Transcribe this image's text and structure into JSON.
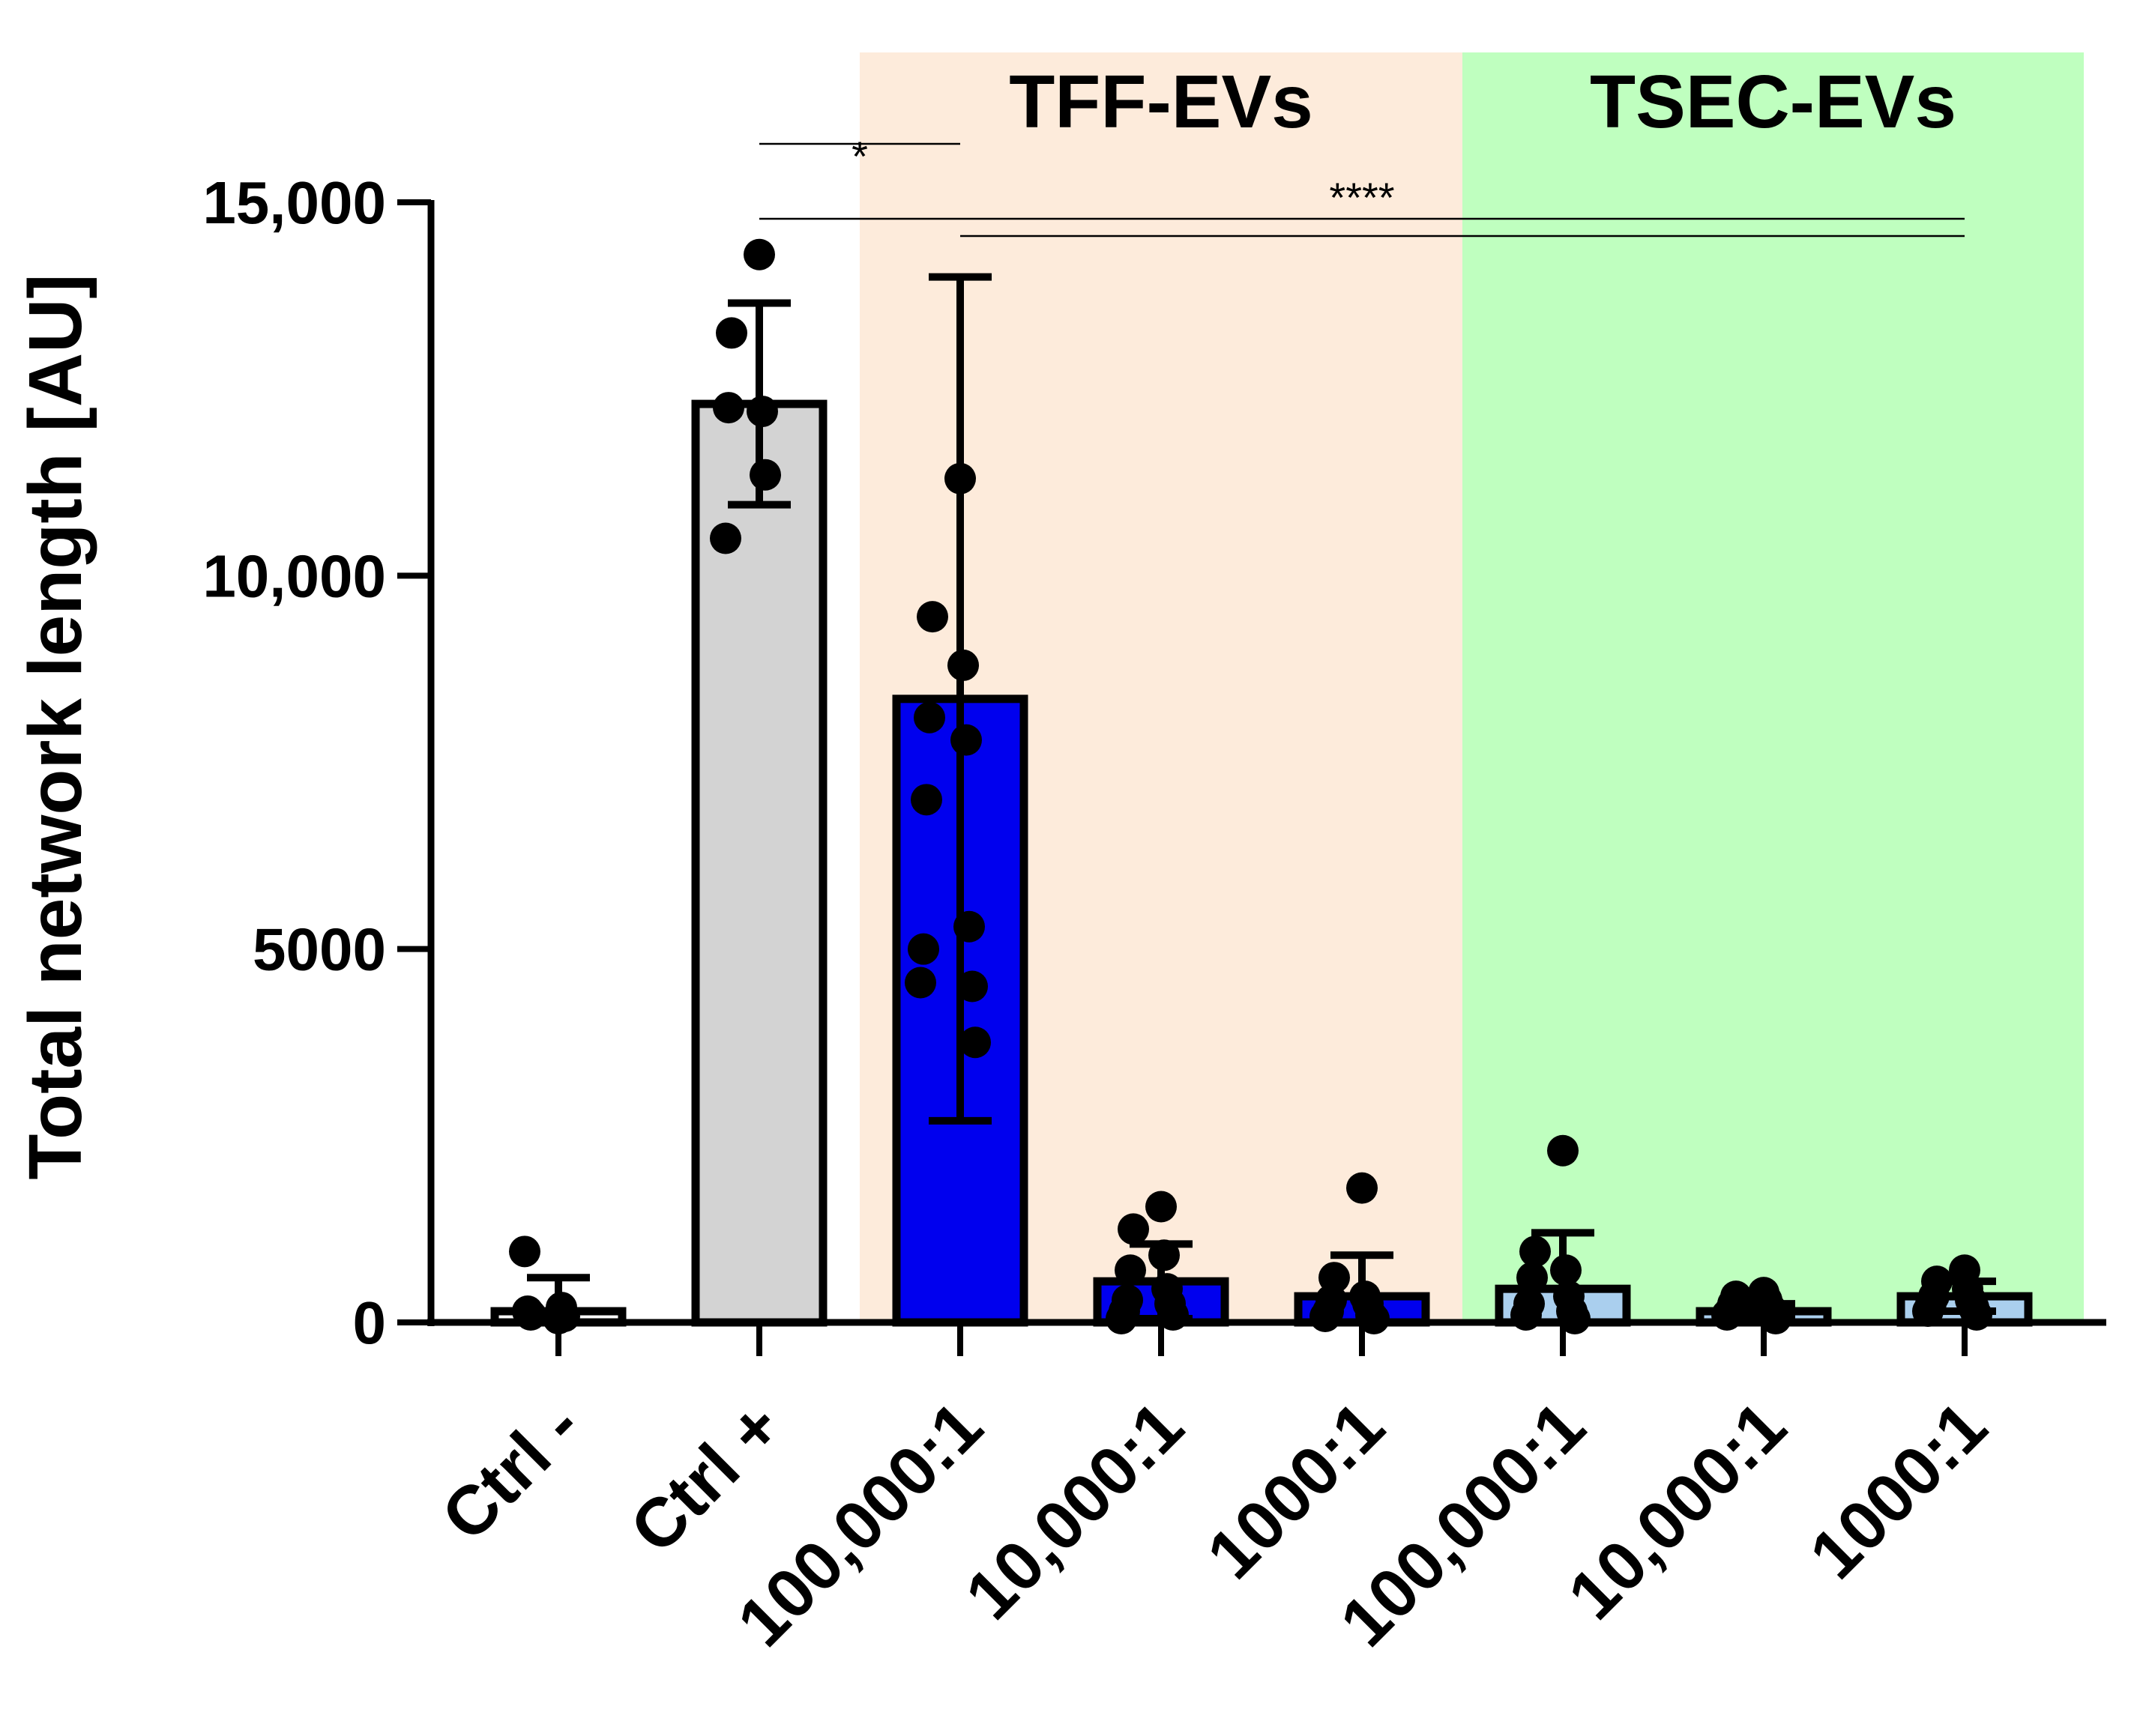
{
  "chart_data": {
    "type": "bar",
    "ylabel": "Total network length [AU]",
    "ylim": [
      0,
      15000
    ],
    "yticks": [
      {
        "value": 0,
        "label": "0"
      },
      {
        "value": 5000,
        "label": "5000"
      },
      {
        "value": 10000,
        "label": "10,000"
      },
      {
        "value": 15000,
        "label": "15,000"
      }
    ],
    "groups": [
      {
        "label": "TFF-EVs",
        "color": "#fdebdb",
        "start": 2,
        "end": 4
      },
      {
        "label": "TSEC-EVs",
        "color": "#bfffbf",
        "start": 5,
        "end": 7
      }
    ],
    "categories": [
      "Ctrl -",
      "Ctrl +",
      "100,000:1",
      "10,000:1",
      "1000:1",
      "100,000:1",
      "10,000:1",
      "1000:1"
    ],
    "series": [
      {
        "values": [
          150,
          12300,
          8350,
          550,
          350,
          450,
          150,
          350
        ],
        "errors": [
          450,
          1350,
          5650,
          500,
          550,
          750,
          100,
          200
        ],
        "colors": [
          "#ffffff",
          "#d3d3d3",
          "#0000ee",
          "#0000ee",
          "#0000ee",
          "#aacfee",
          "#aacfee",
          "#aacfee"
        ],
        "points": [
          [
            50,
            100,
            200,
            150,
            80,
            950
          ],
          [
            14300,
            13250,
            12200,
            12250,
            11350,
            10500
          ],
          [
            11300,
            9450,
            8800,
            8100,
            7800,
            7000,
            5300,
            5000,
            4500,
            4550,
            3750
          ],
          [
            1550,
            1250,
            900,
            700,
            450,
            300,
            250,
            150,
            100,
            50
          ],
          [
            1800,
            600,
            350,
            300,
            250,
            150,
            100,
            80,
            50
          ],
          [
            2300,
            950,
            700,
            600,
            350,
            250,
            150,
            100,
            50
          ],
          [
            400,
            350,
            300,
            250,
            200,
            150,
            150,
            100,
            50
          ],
          [
            700,
            550,
            450,
            350,
            300,
            250,
            200,
            150,
            100
          ]
        ]
      }
    ],
    "significance": [
      {
        "label": "*",
        "from": 1,
        "to": 2
      },
      {
        "label": "****",
        "from": 1,
        "to": 7
      },
      {
        "label": "",
        "from": 2,
        "to": 7
      }
    ]
  }
}
